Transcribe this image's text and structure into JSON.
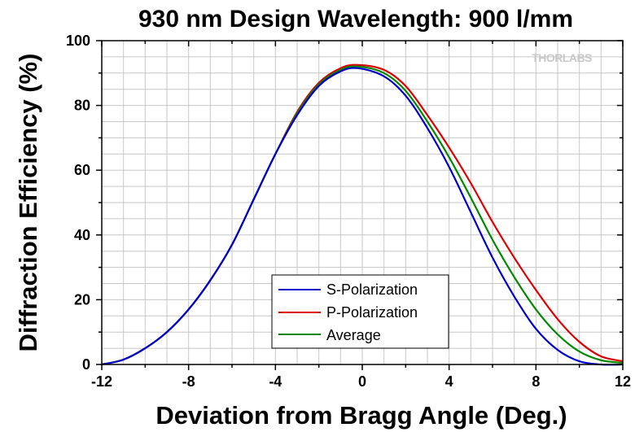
{
  "logo_text": "THORLABS",
  "chart_data": {
    "type": "line",
    "title": "930 nm Design Wavelength: 900 l/mm",
    "xlabel": "Deviation from Bragg Angle (Deg.)",
    "ylabel": "Diffraction Efficiency (%)",
    "xlim": [
      -12,
      12
    ],
    "ylim": [
      0,
      100
    ],
    "xticks": [
      -12,
      -8,
      -4,
      0,
      4,
      8,
      12
    ],
    "yticks": [
      0,
      20,
      40,
      60,
      80,
      100
    ],
    "grid": true,
    "legend_position": "bottom-center",
    "series": [
      {
        "name": "S-Polarization",
        "color": "#0000cc",
        "x": [
          -12,
          -11,
          -10,
          -9,
          -8,
          -7,
          -6,
          -5,
          -4,
          -3,
          -2,
          -1,
          -0.2,
          1,
          2,
          3,
          4,
          5,
          6,
          7,
          8,
          9,
          10,
          11,
          12
        ],
        "y": [
          0,
          1.5,
          5,
          10,
          17,
          26,
          37,
          51,
          65,
          77,
          86,
          90.5,
          91.5,
          89,
          83,
          73,
          61,
          47,
          33,
          21,
          11,
          4.5,
          1,
          0,
          0
        ]
      },
      {
        "name": "P-Polarization",
        "color": "#dd0000",
        "x": [
          -12,
          -11,
          -10,
          -9,
          -8,
          -7,
          -6,
          -5,
          -4,
          -3,
          -2,
          -1,
          -0.2,
          1,
          2,
          3,
          4,
          5,
          6,
          7,
          8,
          9,
          10,
          11,
          12
        ],
        "y": [
          0,
          1.5,
          5,
          10,
          17,
          26,
          37,
          51,
          65,
          78,
          87,
          91.5,
          92.5,
          91,
          86,
          77,
          67,
          56,
          44,
          33,
          23,
          14,
          7,
          2.5,
          1
        ]
      },
      {
        "name": "Average",
        "color": "#008800",
        "x": [
          -12,
          -11,
          -10,
          -9,
          -8,
          -7,
          -6,
          -5,
          -4,
          -3,
          -2,
          -1,
          -0.2,
          1,
          2,
          3,
          4,
          5,
          6,
          7,
          8,
          9,
          10,
          11,
          12
        ],
        "y": [
          0,
          1.5,
          5,
          10,
          17,
          26,
          37,
          51,
          65,
          77.5,
          86.5,
          91,
          92,
          90,
          84.5,
          75,
          64,
          51.5,
          38.5,
          27,
          17,
          9.3,
          4,
          1.3,
          0.5
        ]
      }
    ]
  }
}
